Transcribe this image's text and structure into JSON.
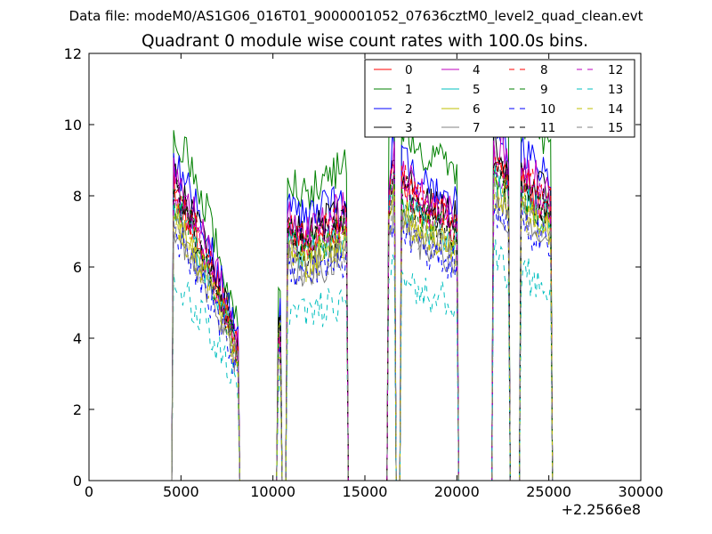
{
  "figure": {
    "suptitle": "Data file: modeM0/AS1G06_016T01_9000001052_07636cztM0_level2_quad_clean.evt",
    "title": "Quadrant 0 module wise count rates with 100.0s bins."
  },
  "chart_data": {
    "type": "line",
    "title": "Quadrant 0 module wise count rates with 100.0s bins.",
    "xlabel": "",
    "ylabel": "",
    "x_offset_label": "+2.2566e8",
    "xlim": [
      0,
      30000
    ],
    "ylim": [
      0,
      12
    ],
    "xticks": [
      0,
      5000,
      10000,
      15000,
      20000,
      25000,
      30000
    ],
    "xtick_labels": [
      "0",
      "5000",
      "10000",
      "15000",
      "20000",
      "25000",
      "30000"
    ],
    "yticks": [
      0,
      2,
      4,
      6,
      8,
      10,
      12
    ],
    "ytick_labels": [
      "0",
      "2",
      "4",
      "6",
      "8",
      "10",
      "12"
    ],
    "grid": false,
    "legend": {
      "placement": "top-right",
      "columns": 4
    },
    "bin_width_s": 100,
    "segments": [
      {
        "start": 4600,
        "end": 8100,
        "level": [
          8.2,
          7.0,
          5.5,
          3.6
        ]
      },
      {
        "start": 10300,
        "end": 10400,
        "level": [
          4.2,
          4.2
        ]
      },
      {
        "start": 10800,
        "end": 14000,
        "level": [
          7.0,
          6.6,
          7.0,
          7.2
        ]
      },
      {
        "start": 16300,
        "end": 16600,
        "level": [
          7.8,
          8.8
        ]
      },
      {
        "start": 17000,
        "end": 20000,
        "level": [
          8.3,
          7.6,
          7.4,
          7.0
        ]
      },
      {
        "start": 22000,
        "end": 22800,
        "level": [
          9.0,
          8.4
        ]
      },
      {
        "start": 23500,
        "end": 25100,
        "level": [
          8.4,
          7.6
        ]
      }
    ],
    "series": [
      {
        "name": "0",
        "color": "#ff0000",
        "style": "solid",
        "scale": 1.0
      },
      {
        "name": "1",
        "color": "#008000",
        "style": "solid",
        "scale": 1.22
      },
      {
        "name": "2",
        "color": "#0000ff",
        "style": "solid",
        "scale": 1.1
      },
      {
        "name": "3",
        "color": "#000000",
        "style": "solid",
        "scale": 1.04
      },
      {
        "name": "4",
        "color": "#bf00bf",
        "style": "solid",
        "scale": 1.06
      },
      {
        "name": "5",
        "color": "#00bfbf",
        "style": "solid",
        "scale": 0.95
      },
      {
        "name": "6",
        "color": "#bfbf00",
        "style": "solid",
        "scale": 0.93
      },
      {
        "name": "7",
        "color": "#808080",
        "style": "solid",
        "scale": 0.88
      },
      {
        "name": "8",
        "color": "#ff0000",
        "style": "dashed",
        "scale": 1.02
      },
      {
        "name": "9",
        "color": "#008000",
        "style": "dashed",
        "scale": 0.97
      },
      {
        "name": "10",
        "color": "#0000ff",
        "style": "dashed",
        "scale": 0.86
      },
      {
        "name": "11",
        "color": "#000000",
        "style": "dashed",
        "scale": 0.99
      },
      {
        "name": "12",
        "color": "#bf00bf",
        "style": "dashed",
        "scale": 1.0
      },
      {
        "name": "13",
        "color": "#00bfbf",
        "style": "dashed",
        "scale": 0.7
      },
      {
        "name": "14",
        "color": "#bfbf00",
        "style": "dashed",
        "scale": 0.91
      },
      {
        "name": "15",
        "color": "#808080",
        "style": "dashed",
        "scale": 0.9
      }
    ]
  }
}
